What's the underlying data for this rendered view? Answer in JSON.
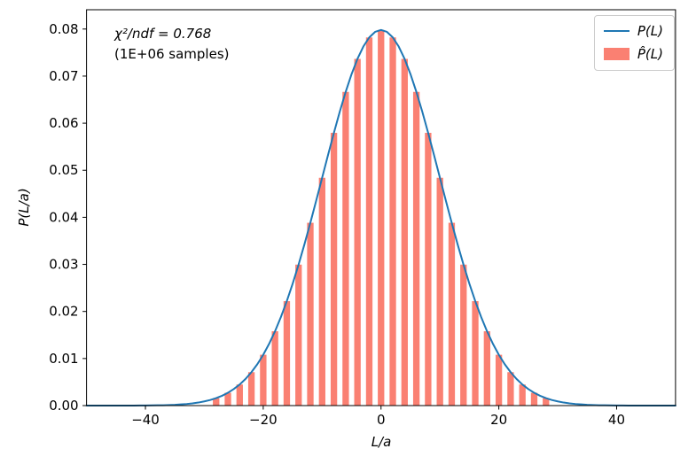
{
  "figure": {
    "background": "#ffffff",
    "annotation_line1": "χ²/ndf = 0.768",
    "annotation_line2": "(1E+06 samples)"
  },
  "legend": {
    "position": "upper right",
    "items": [
      {
        "label": "P(L)",
        "swatch": "line",
        "color": "#1f77b4"
      },
      {
        "label": "P̂(L)",
        "swatch": "patch",
        "color": "#fa8072"
      }
    ]
  },
  "chart_data": {
    "type": "line+bar",
    "title": "",
    "xlabel": "L/a",
    "ylabel": "P(L/a)",
    "xlim": [
      -50,
      50
    ],
    "ylim": [
      0,
      0.0841
    ],
    "xticks": [
      -40,
      -20,
      0,
      20,
      40
    ],
    "yticks": [
      0,
      0.01,
      0.02,
      0.03,
      0.04,
      0.05,
      0.06,
      0.07,
      0.08
    ],
    "grid": false,
    "legend_position": "upper right",
    "annotation": "χ²/ndf = 0.768 (1E+06 samples)",
    "series": [
      {
        "name": "P(L)",
        "type": "line",
        "color": "#1f77b4",
        "linewidth": 2,
        "x": [
          -50,
          -49,
          -48,
          -47,
          -46,
          -45,
          -44,
          -43,
          -42,
          -41,
          -40,
          -39,
          -38,
          -37,
          -36,
          -35,
          -34,
          -33,
          -32,
          -31,
          -30,
          -29,
          -28,
          -27,
          -26,
          -25,
          -24,
          -23,
          -22,
          -21,
          -20,
          -19,
          -18,
          -17,
          -16,
          -15,
          -14,
          -13,
          -12,
          -11,
          -10,
          -9,
          -8,
          -7,
          -6,
          -5,
          -4,
          -3,
          -2,
          -1,
          0,
          1,
          2,
          3,
          4,
          5,
          6,
          7,
          8,
          9,
          10,
          11,
          12,
          13,
          14,
          15,
          16,
          17,
          18,
          19,
          20,
          21,
          22,
          23,
          24,
          25,
          26,
          27,
          28,
          29,
          30,
          31,
          32,
          33,
          34,
          35,
          36,
          37,
          38,
          39,
          40,
          41,
          42,
          43,
          44,
          45,
          46,
          47,
          48,
          49,
          50
        ],
        "y": [
          0,
          0,
          0,
          0,
          0,
          0,
          1e-05,
          1e-05,
          1e-05,
          2e-05,
          3e-05,
          4e-05,
          6e-05,
          8e-05,
          0.00012,
          0.00017,
          0.00025,
          0.00034,
          0.00048,
          0.00065,
          0.00089,
          0.00119,
          0.00158,
          0.00208,
          0.00272,
          0.00351,
          0.00448,
          0.00567,
          0.0071,
          0.0088,
          0.0108,
          0.01312,
          0.01579,
          0.01881,
          0.02219,
          0.02591,
          0.02995,
          0.03428,
          0.03884,
          0.04358,
          0.0484,
          0.05323,
          0.05795,
          0.06246,
          0.06665,
          0.07042,
          0.07366,
          0.07629,
          0.07822,
          0.0794,
          0.0798,
          0.0794,
          0.07822,
          0.07629,
          0.07366,
          0.07042,
          0.06665,
          0.06246,
          0.05795,
          0.05323,
          0.0484,
          0.04358,
          0.03884,
          0.03428,
          0.02995,
          0.02591,
          0.02219,
          0.01881,
          0.01579,
          0.01312,
          0.0108,
          0.0088,
          0.0071,
          0.00567,
          0.00448,
          0.00351,
          0.00272,
          0.00208,
          0.00158,
          0.00119,
          0.00089,
          0.00065,
          0.00048,
          0.00034,
          0.00025,
          0.00017,
          0.00012,
          8e-05,
          6e-05,
          4e-05,
          3e-05,
          2e-05,
          1e-05,
          1e-05,
          1e-05,
          0,
          0,
          0,
          0,
          0,
          0
        ]
      },
      {
        "name": "P̂(L)",
        "type": "bar",
        "color": "#fa8072",
        "bar_width": 1.1,
        "x": [
          -28,
          -26,
          -24,
          -22,
          -20,
          -18,
          -16,
          -14,
          -12,
          -10,
          -8,
          -6,
          -4,
          -2,
          0,
          2,
          4,
          6,
          8,
          10,
          12,
          14,
          16,
          18,
          20,
          22,
          24,
          26,
          28
        ],
        "y": [
          0.00158,
          0.00272,
          0.00448,
          0.0071,
          0.0108,
          0.01579,
          0.02219,
          0.02995,
          0.03884,
          0.0484,
          0.05795,
          0.06665,
          0.07366,
          0.07822,
          0.0798,
          0.07822,
          0.07366,
          0.06665,
          0.05795,
          0.0484,
          0.03884,
          0.02995,
          0.02219,
          0.01579,
          0.0108,
          0.0071,
          0.00448,
          0.00272,
          0.00158
        ]
      }
    ]
  }
}
